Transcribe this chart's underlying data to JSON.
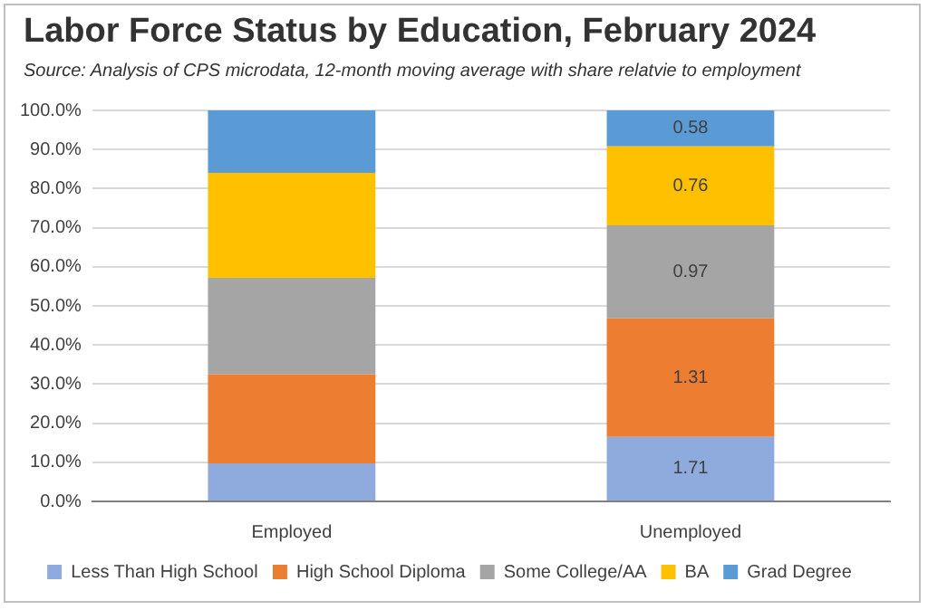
{
  "chart_data": {
    "type": "bar",
    "stacked": true,
    "title": "Labor Force Status by Education, February 2024",
    "subtitle": "Source:  Analysis of CPS microdata, 12-month moving average with share relatvie to employment",
    "categories": [
      "Employed",
      "Unemployed"
    ],
    "series": [
      {
        "name": "Less Than High School",
        "color": "#8faadc",
        "values": [
          9.7,
          16.5
        ]
      },
      {
        "name": "High School Diploma",
        "color": "#ed7d31",
        "values": [
          22.8,
          30.3
        ]
      },
      {
        "name": "Some College/AA",
        "color": "#a5a5a5",
        "values": [
          24.7,
          23.8
        ]
      },
      {
        "name": "BA",
        "color": "#ffc000",
        "values": [
          26.8,
          20.2
        ]
      },
      {
        "name": "Grad Degree",
        "color": "#5b9bd5",
        "values": [
          16.0,
          9.2
        ]
      }
    ],
    "annotations": [
      "1.71",
      "1.31",
      "0.97",
      "0.76",
      "0.58"
    ],
    "ylim": [
      0,
      100
    ],
    "yticks": [
      {
        "value": 0,
        "label": "0.0%"
      },
      {
        "value": 10,
        "label": "10.0%"
      },
      {
        "value": 20,
        "label": "20.0%"
      },
      {
        "value": 30,
        "label": "30.0%"
      },
      {
        "value": 40,
        "label": "40.0%"
      },
      {
        "value": 50,
        "label": "50.0%"
      },
      {
        "value": 60,
        "label": "60.0%"
      },
      {
        "value": 70,
        "label": "70.0%"
      },
      {
        "value": 80,
        "label": "80.0%"
      },
      {
        "value": 90,
        "label": "90.0%"
      },
      {
        "value": 100,
        "label": "100.0%"
      }
    ],
    "grid": "y",
    "legend": "bottom"
  }
}
